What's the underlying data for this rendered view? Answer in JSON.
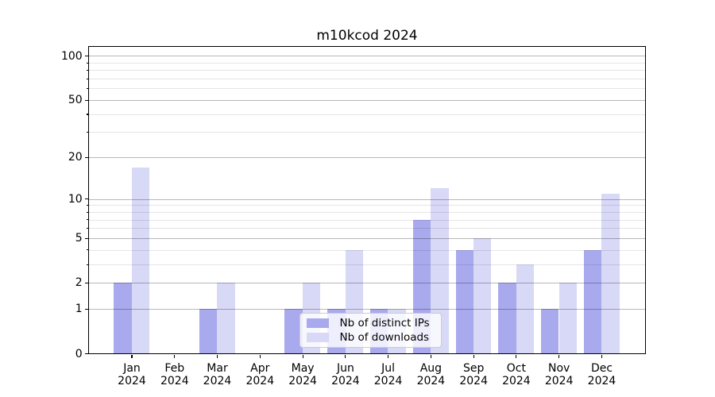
{
  "chart_data": {
    "type": "bar",
    "title": "m10kcod 2024",
    "categories": [
      "Jan\n2024",
      "Feb\n2024",
      "Mar\n2024",
      "Apr\n2024",
      "May\n2024",
      "Jun\n2024",
      "Jul\n2024",
      "Aug\n2024",
      "Sep\n2024",
      "Oct\n2024",
      "Nov\n2024",
      "Dec\n2024"
    ],
    "series": [
      {
        "name": "Nb of distinct IPs",
        "color": "#a9a9ee",
        "values": [
          2,
          0,
          1,
          0,
          1,
          1,
          1,
          7,
          4,
          2,
          1,
          4
        ]
      },
      {
        "name": "Nb of downloads",
        "color": "#d8d8f7",
        "values": [
          17,
          0,
          2,
          0,
          2,
          4,
          1,
          12,
          5,
          3,
          2,
          11
        ]
      }
    ],
    "xlabel": "",
    "ylabel": "",
    "yscale": "log1p",
    "ylim": [
      0,
      115
    ],
    "yticks": [
      0,
      1,
      2,
      5,
      10,
      20,
      50,
      100
    ],
    "minor_gridlines": [
      3,
      4,
      6,
      7,
      8,
      9,
      30,
      40,
      60,
      70,
      80,
      90
    ],
    "grid": true,
    "legend": {
      "position": "lower center",
      "entries": [
        "Nb of distinct IPs",
        "Nb of downloads"
      ]
    },
    "colors": {
      "distinct_ips": "#a9a9ee",
      "downloads": "#d8d8f7",
      "grid_major": "rgba(0,0,0,0.28)",
      "grid_minor": "rgba(0,0,0,0.10)",
      "spine": "#000000"
    }
  }
}
